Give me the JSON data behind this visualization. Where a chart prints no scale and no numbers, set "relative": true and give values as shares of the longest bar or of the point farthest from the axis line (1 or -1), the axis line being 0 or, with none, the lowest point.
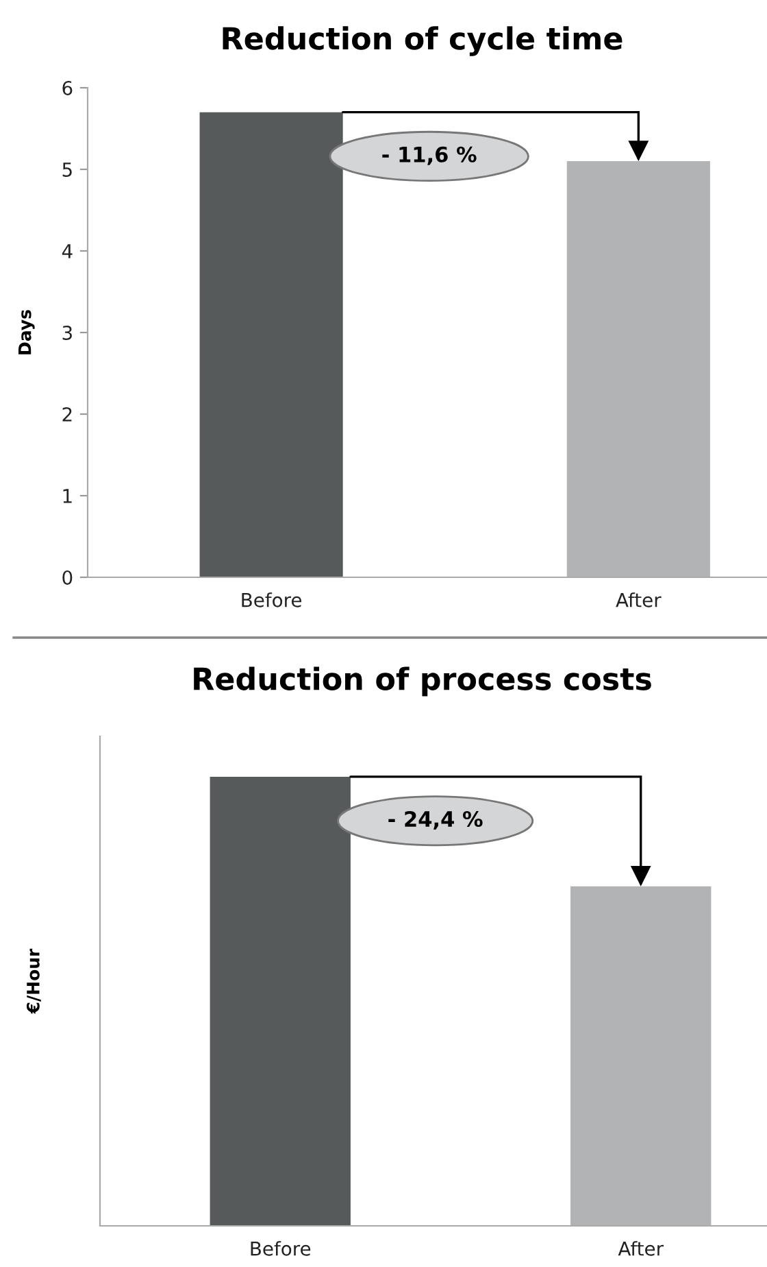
{
  "chart_data": [
    {
      "type": "bar",
      "title": "Reduction of cycle time",
      "ylabel": "Days",
      "categories": [
        "Before",
        "After"
      ],
      "values": [
        5.7,
        5.1
      ],
      "colors": [
        "#575a5b",
        "#b1b3b4"
      ],
      "ylim": [
        0,
        6
      ],
      "yticks": [
        0,
        1,
        2,
        3,
        4,
        5,
        6
      ],
      "grid": false,
      "legend": false,
      "annotations": [
        "- 11,6 %"
      ]
    },
    {
      "type": "bar",
      "title": "Reduction of process costs",
      "ylabel": "€/Hour",
      "categories": [
        "Before",
        "After"
      ],
      "values": [
        1,
        0.756
      ],
      "colors": [
        "#575a5b",
        "#b1b3b4"
      ],
      "relative": true,
      "tick_labels": "x",
      "grid": false,
      "legend": false,
      "annotations": [
        "- 24,4 %"
      ]
    }
  ]
}
